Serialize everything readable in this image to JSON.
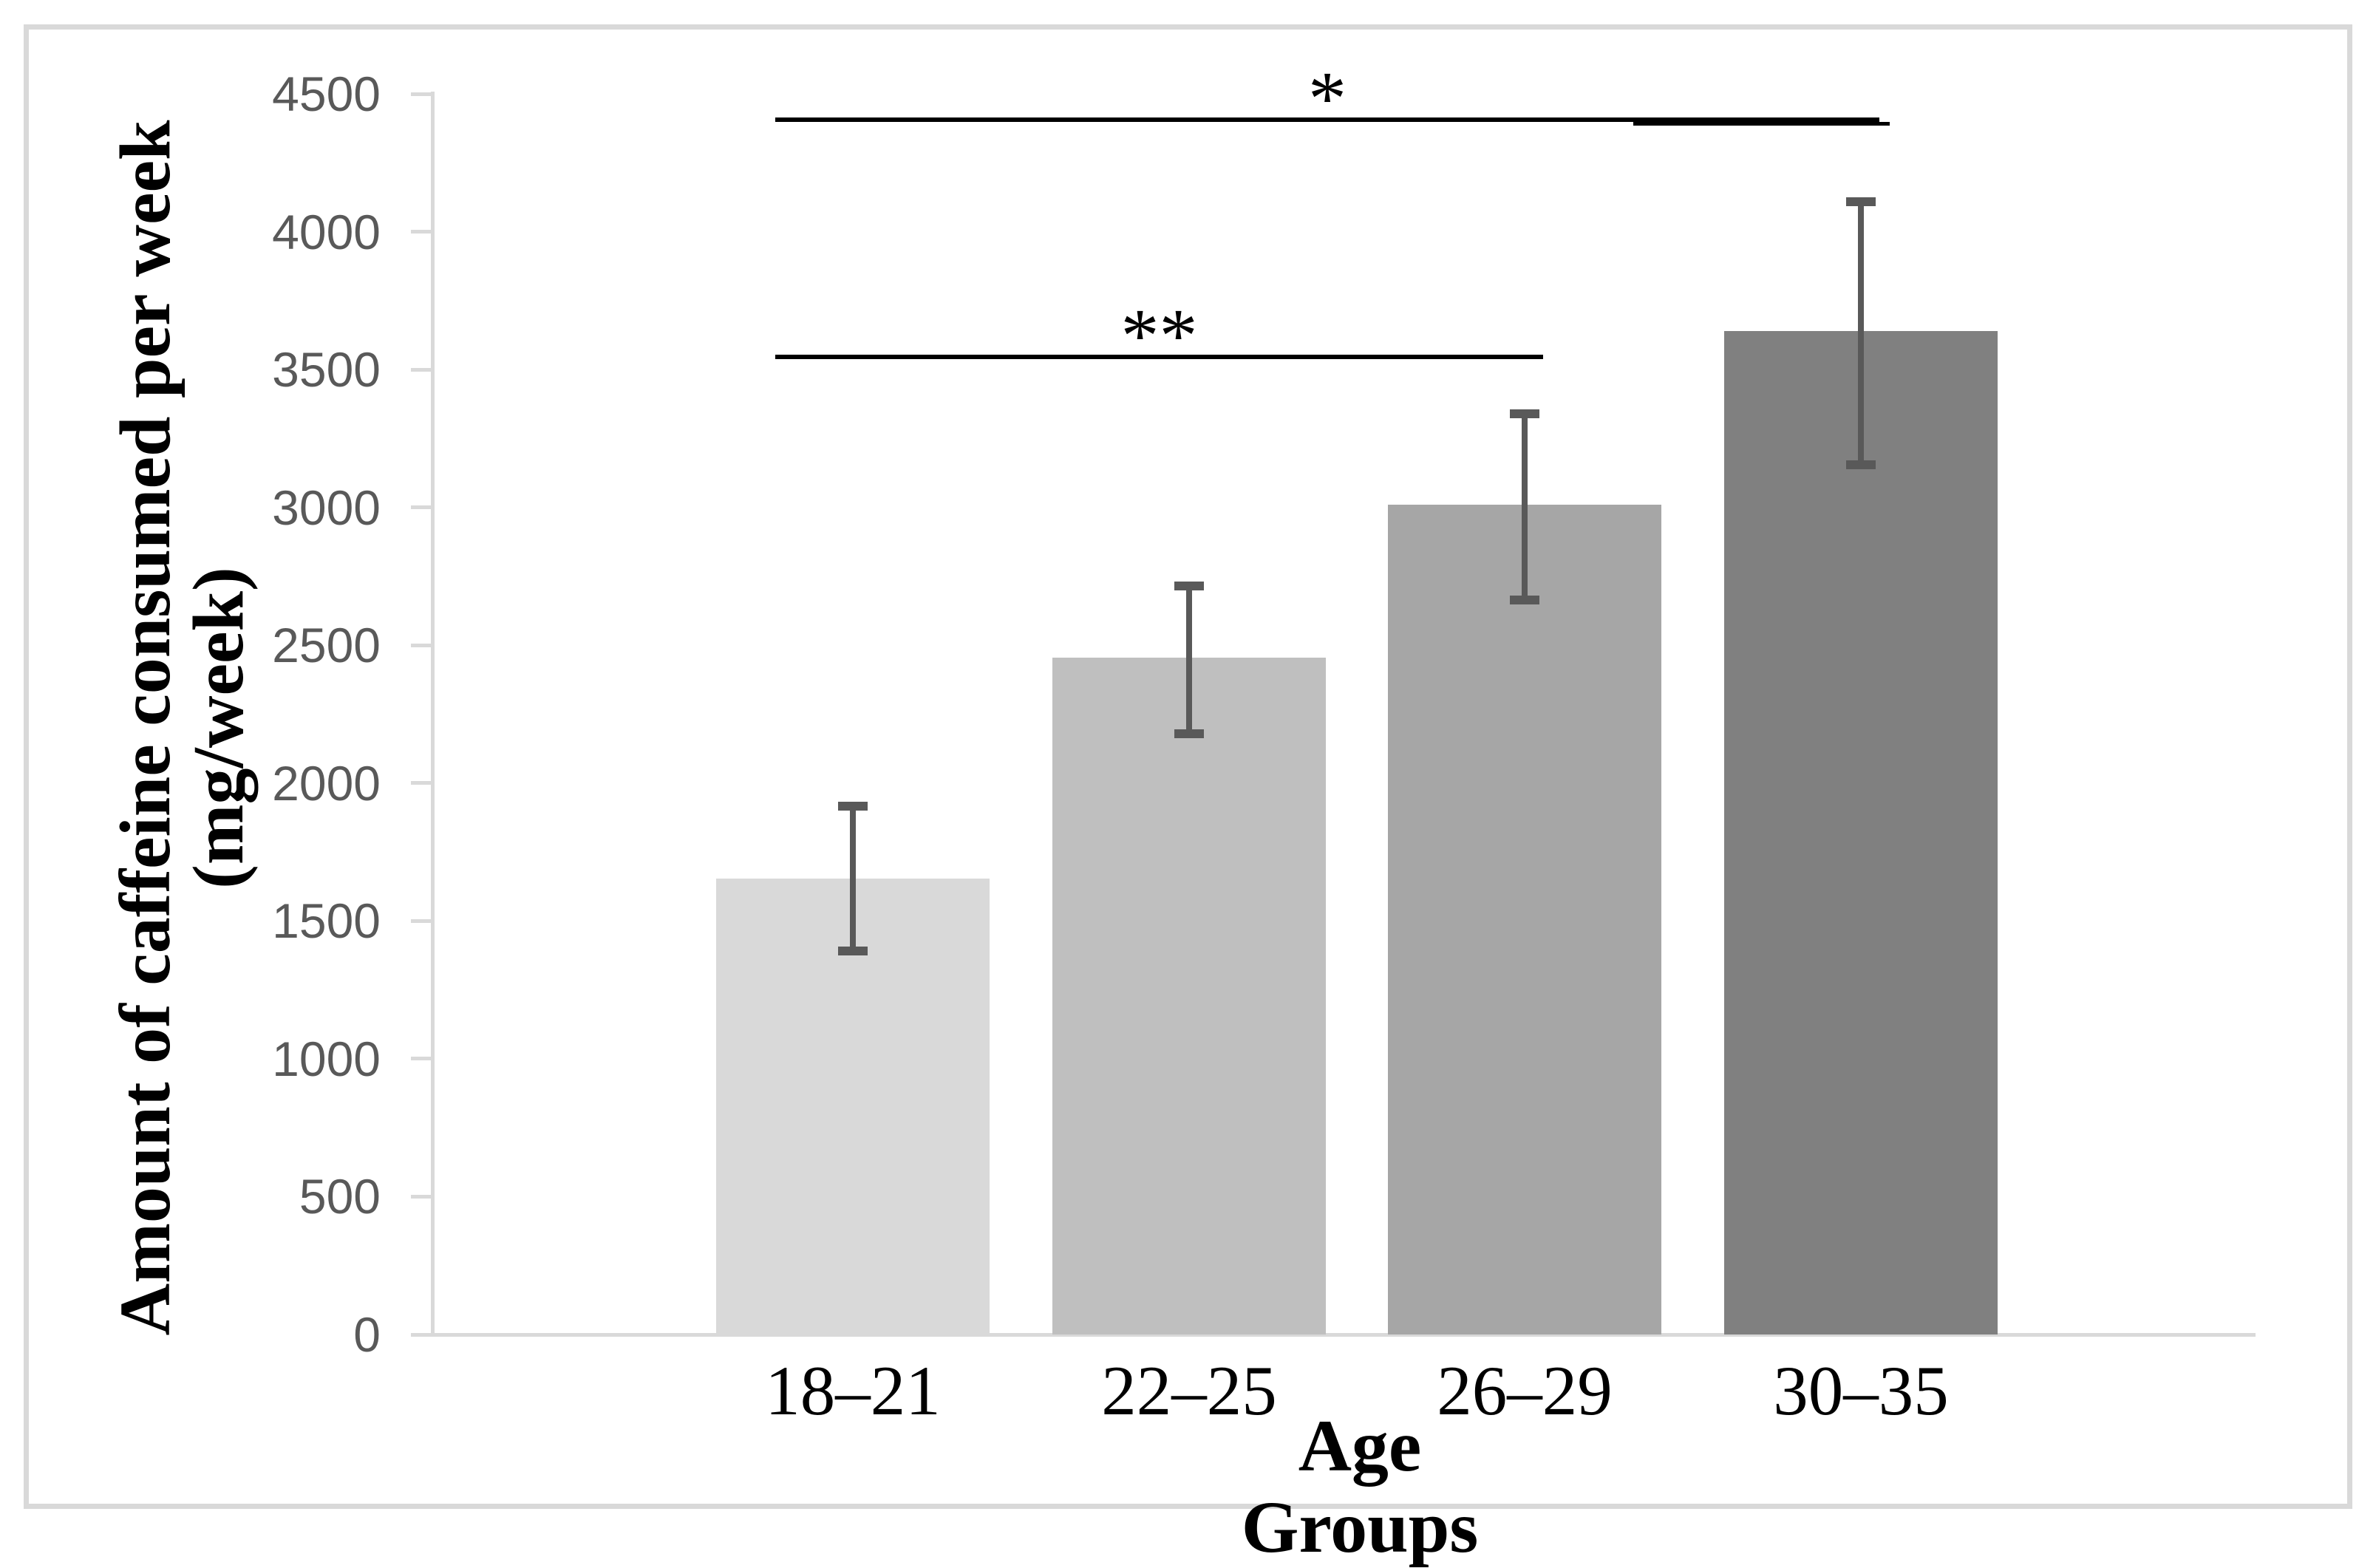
{
  "chart_data": {
    "type": "bar",
    "title": "",
    "xlabel": "Age Groups",
    "ylabel": "Amount of caffeine consumed per week (mg/week)",
    "ylabel_line1": "Amount of caffeine consumed per week",
    "ylabel_line2": "(mg/week)",
    "categories": [
      "18–21",
      "22–25",
      "26–29",
      "30–35"
    ],
    "values": [
      1655,
      2455,
      3010,
      3640
    ],
    "error_high": [
      1915,
      2715,
      3340,
      4110
    ],
    "error_low": [
      1390,
      2180,
      2665,
      3155
    ],
    "bar_colors": [
      "#d9d9d9",
      "#bfbfbf",
      "#a6a6a6",
      "#808080"
    ],
    "y_ticks": [
      0,
      500,
      1000,
      1500,
      2000,
      2500,
      3000,
      3500,
      4000,
      4500
    ],
    "ylim": [
      0,
      4500
    ],
    "grid": false,
    "legend": null,
    "significance": [
      {
        "label": "**",
        "from": 0,
        "to": 2,
        "value": 3545
      },
      {
        "label": "*",
        "from": 0,
        "to": 3,
        "value": 4405
      }
    ],
    "colors": {
      "axis": "#d9d9d9",
      "border": "#d9d9d9",
      "tick_label": "#595959",
      "error_bar": "#595959",
      "significance": "#000000",
      "background": "#ffffff"
    }
  }
}
